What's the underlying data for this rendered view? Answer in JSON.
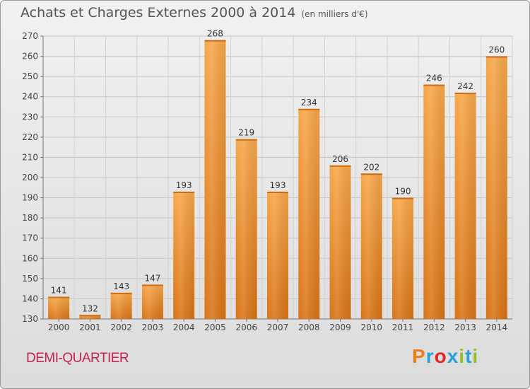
{
  "header": {
    "title": "Achats et Charges Externes 2000 à 2014",
    "unit": "(en milliers d'€)"
  },
  "footer": {
    "commune": "DEMI-QUARTIER",
    "brand": "Proxiti",
    "brand_colors": [
      "#f07d1a",
      "#2aa0d9",
      "#e3262a",
      "#2aa0d9",
      "#93c01f",
      "#2aa0d9",
      "#93c01f"
    ]
  },
  "chart_data": {
    "type": "bar",
    "categories": [
      "2000",
      "2001",
      "2002",
      "2003",
      "2004",
      "2005",
      "2006",
      "2007",
      "2008",
      "2009",
      "2010",
      "2011",
      "2012",
      "2013",
      "2014"
    ],
    "values": [
      141,
      132,
      143,
      147,
      193,
      268,
      219,
      193,
      234,
      206,
      202,
      190,
      246,
      242,
      260
    ],
    "title": "Achats et Charges Externes 2000 à 2014",
    "ylim": [
      130,
      270
    ],
    "yticks": [
      130,
      140,
      150,
      160,
      170,
      180,
      190,
      200,
      210,
      220,
      230,
      240,
      250,
      260,
      270
    ],
    "grid": true,
    "bar_color": "#f0962d",
    "data_labels": true
  }
}
